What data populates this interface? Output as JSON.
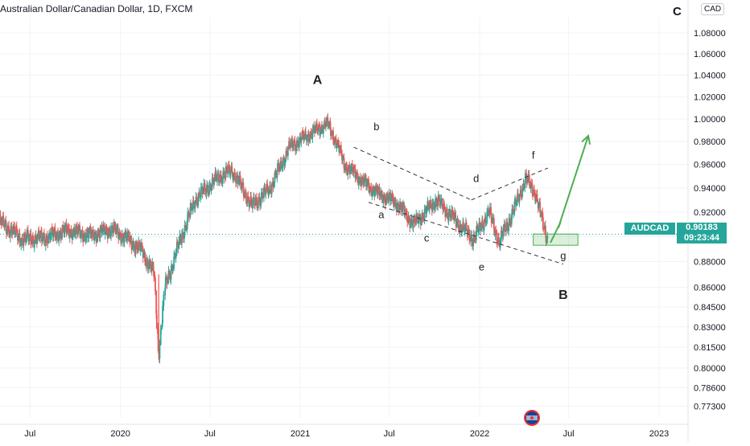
{
  "header": {
    "title": "Australian Dollar/Canadian Dollar, 1D, FXCM",
    "currency_badge": "CAD",
    "edge_glyph": "C"
  },
  "price_tag": {
    "symbol": "AUDCAD",
    "price": "0.90183",
    "countdown": "09:23:44",
    "current_price": 0.90183
  },
  "colors": {
    "up": "#26a69a",
    "down": "#ef5350",
    "projection": "#4caf50",
    "grid": "#f0f3fa",
    "text": "#131722"
  },
  "chart_data": {
    "type": "candlestick",
    "symbol": "AUDCAD",
    "interval": "1D",
    "source": "FXCM",
    "x_ticks": [
      "Jul",
      "2020",
      "Jul",
      "2021",
      "Jul",
      "2022",
      "Jul",
      "2023"
    ],
    "y_ticks": [
      1.08,
      1.06,
      1.04,
      1.02,
      1.0,
      0.98,
      0.96,
      0.94,
      0.92,
      0.9,
      0.88,
      0.86,
      0.845,
      0.83,
      0.815,
      0.8,
      0.786,
      0.773
    ],
    "y_tick_labels": [
      "1.08000",
      "1.06000",
      "1.04000",
      "1.02000",
      "1.00000",
      "0.98000",
      "0.96000",
      "0.94000",
      "0.92000",
      "0.90000",
      "0.88000",
      "0.86000",
      "0.84500",
      "0.83000",
      "0.81500",
      "0.80000",
      "0.78600",
      "0.77300"
    ],
    "y_scale": "log",
    "ylim": [
      0.765,
      1.095
    ],
    "xlim": [
      "2019-05",
      "2023-03"
    ],
    "price_path": [
      [
        "2019-05-01",
        0.912
      ],
      [
        "2019-06-15",
        0.898
      ],
      [
        "2019-08-01",
        0.899
      ],
      [
        "2019-09-15",
        0.905
      ],
      [
        "2019-11-01",
        0.901
      ],
      [
        "2019-12-15",
        0.906
      ],
      [
        "2020-01-20",
        0.897
      ],
      [
        "2020-02-15",
        0.888
      ],
      [
        "2020-03-10",
        0.87
      ],
      [
        "2020-03-19",
        0.81
      ],
      [
        "2020-04-01",
        0.86
      ],
      [
        "2020-05-01",
        0.896
      ],
      [
        "2020-06-01",
        0.93
      ],
      [
        "2020-07-15",
        0.948
      ],
      [
        "2020-08-15",
        0.955
      ],
      [
        "2020-09-25",
        0.925
      ],
      [
        "2020-11-01",
        0.94
      ],
      [
        "2020-12-10",
        0.975
      ],
      [
        "2021-01-15",
        0.985
      ],
      [
        "2021-02-25",
        0.996
      ],
      [
        "2021-03-15",
        0.98
      ],
      [
        "2021-04-01",
        0.96
      ],
      [
        "2021-05-10",
        0.945
      ],
      [
        "2021-06-10",
        0.935
      ],
      [
        "2021-07-15",
        0.928
      ],
      [
        "2021-08-20",
        0.91
      ],
      [
        "2021-10-05",
        0.93
      ],
      [
        "2021-11-20",
        0.91
      ],
      [
        "2021-12-20",
        0.898
      ],
      [
        "2022-01-20",
        0.92
      ],
      [
        "2022-02-10",
        0.895
      ],
      [
        "2022-03-10",
        0.92
      ],
      [
        "2022-04-05",
        0.948
      ],
      [
        "2022-04-25",
        0.935
      ],
      [
        "2022-05-10",
        0.91
      ],
      [
        "2022-05-20",
        0.898
      ]
    ],
    "annotations": {
      "labels": [
        {
          "text": "A",
          "date": "2021-02-05",
          "price": 1.032,
          "bold": true
        },
        {
          "text": "B",
          "date": "2022-06-20",
          "price": 0.851,
          "bold": true
        },
        {
          "text": "a",
          "date": "2021-06-15",
          "price": 0.915
        },
        {
          "text": "b",
          "date": "2021-06-05",
          "price": 0.99
        },
        {
          "text": "c",
          "date": "2021-09-15",
          "price": 0.896
        },
        {
          "text": "d",
          "date": "2021-12-25",
          "price": 0.945
        },
        {
          "text": "e",
          "date": "2022-01-05",
          "price": 0.873
        },
        {
          "text": "f",
          "date": "2022-04-20",
          "price": 0.965
        },
        {
          "text": "g",
          "date": "2022-06-20",
          "price": 0.882
        }
      ],
      "trendlines": [
        {
          "from": [
            "2021-04-20",
            0.975
          ],
          "to": [
            "2021-12-15",
            0.93
          ]
        },
        {
          "from": [
            "2021-12-15",
            0.93
          ],
          "to": [
            "2022-05-20",
            0.957
          ]
        },
        {
          "from": [
            "2021-05-20",
            0.928
          ],
          "to": [
            "2022-06-20",
            0.878
          ]
        }
      ],
      "demand_zone": {
        "from_date": "2022-04-20",
        "to_date": "2022-07-20",
        "top": 0.902,
        "bottom": 0.893
      },
      "projection": [
        [
          "2022-05-25",
          0.895
        ],
        [
          "2022-06-15",
          0.912
        ],
        [
          "2022-06-10",
          0.907
        ],
        [
          "2022-08-10",
          0.985
        ]
      ]
    }
  }
}
